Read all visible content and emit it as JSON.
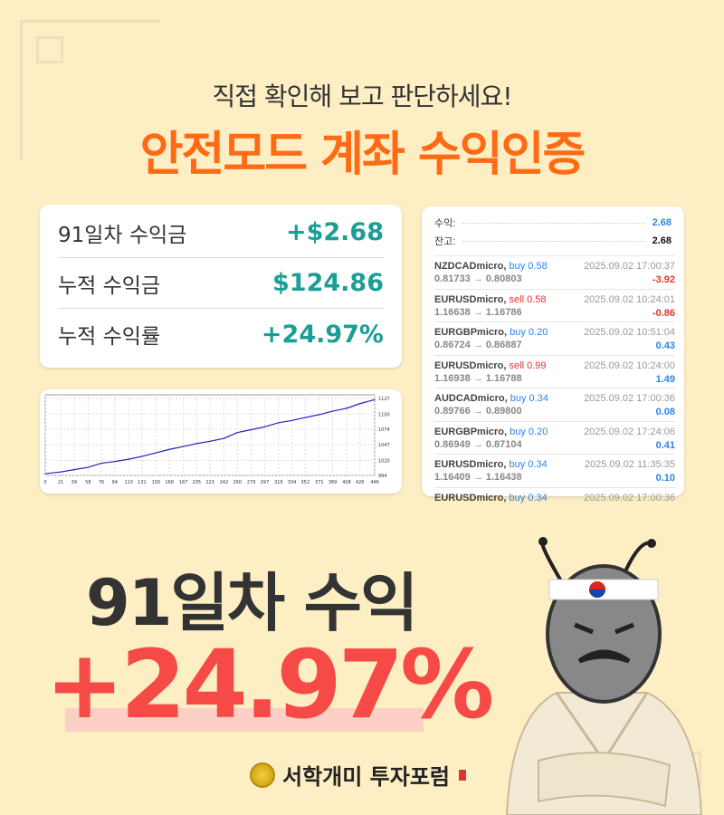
{
  "header": {
    "subtitle": "직접 확인해 보고 판단하세요!",
    "title": "안전모드 계좌 수익인증"
  },
  "summary": [
    {
      "label": "91일차 수익금",
      "value": "+$2.68"
    },
    {
      "label": "누적 수익금",
      "value": "$124.86"
    },
    {
      "label": "누적 수익률",
      "value": "+24.97%"
    }
  ],
  "account": {
    "profit_label": "수익:",
    "profit": "2.68",
    "balance_label": "잔고:",
    "balance": "2.68"
  },
  "trades": [
    {
      "symbol": "NZDCADmicro,",
      "side": "buy 0.58",
      "type": "buy",
      "prices": "0.81733 → 0.80803",
      "time": "2025.09.02 17:00:37",
      "pl": "-3.92"
    },
    {
      "symbol": "EURUSDmicro,",
      "side": "sell 0.58",
      "type": "sell",
      "prices": "1.16638 → 1.16786",
      "time": "2025.09.02 10:24:01",
      "pl": "-0.86"
    },
    {
      "symbol": "EURGBPmicro,",
      "side": "buy 0.20",
      "type": "buy",
      "prices": "0.86724 → 0.86887",
      "time": "2025.09.02 10:51:04",
      "pl": "0.43"
    },
    {
      "symbol": "EURUSDmicro,",
      "side": "sell 0.99",
      "type": "sell",
      "prices": "1.16938 → 1.16788",
      "time": "2025.09.02 10:24:00",
      "pl": "1.49"
    },
    {
      "symbol": "AUDCADmicro,",
      "side": "buy 0.34",
      "type": "buy",
      "prices": "0.89766 → 0.89800",
      "time": "2025.09.02 17:00:36",
      "pl": "0.08"
    },
    {
      "symbol": "EURGBPmicro,",
      "side": "buy 0.20",
      "type": "buy",
      "prices": "0.86949 → 0.87104",
      "time": "2025.09.02 17:24:06",
      "pl": "0.41"
    },
    {
      "symbol": "EURUSDmicro,",
      "side": "buy 0.34",
      "type": "buy",
      "prices": "1.16409 → 1.16438",
      "time": "2025.09.02 11:35:35",
      "pl": "0.10"
    },
    {
      "symbol": "EURUSDmicro,",
      "side": "buy 0.34",
      "type": "buy",
      "prices": "",
      "time": "2025.09.02 17:00:36",
      "pl": ""
    }
  ],
  "colors": {
    "buy": "#2a84f0",
    "sell": "#e8302f",
    "accent": "#ff6a14",
    "teal": "#1a9e96",
    "highlight": "#f54a45"
  },
  "chart_data": {
    "type": "line",
    "ylim": [
      994,
      1127
    ],
    "xlim": [
      0,
      446
    ],
    "grid": true,
    "yticks": [
      1127,
      1100,
      1074,
      1047,
      1020,
      994
    ],
    "xticks": [
      0,
      21,
      39,
      58,
      76,
      94,
      113,
      131,
      150,
      168,
      187,
      205,
      223,
      242,
      260,
      279,
      297,
      316,
      334,
      352,
      371,
      389,
      408,
      426,
      446
    ],
    "x": [
      0,
      21,
      39,
      58,
      76,
      94,
      113,
      131,
      150,
      168,
      187,
      205,
      223,
      242,
      260,
      279,
      297,
      316,
      334,
      352,
      371,
      389,
      408,
      426,
      446
    ],
    "y": [
      997,
      1000,
      1004,
      1008,
      1015,
      1018,
      1022,
      1027,
      1033,
      1039,
      1044,
      1049,
      1053,
      1058,
      1068,
      1073,
      1078,
      1085,
      1089,
      1094,
      1099,
      1105,
      1110,
      1118,
      1125
    ],
    "line_color": "#2222bb"
  },
  "hero": {
    "line1": "91일차 수익",
    "line2": "+24.97%"
  },
  "footer": {
    "brand": "서학개미 투자포럼"
  }
}
